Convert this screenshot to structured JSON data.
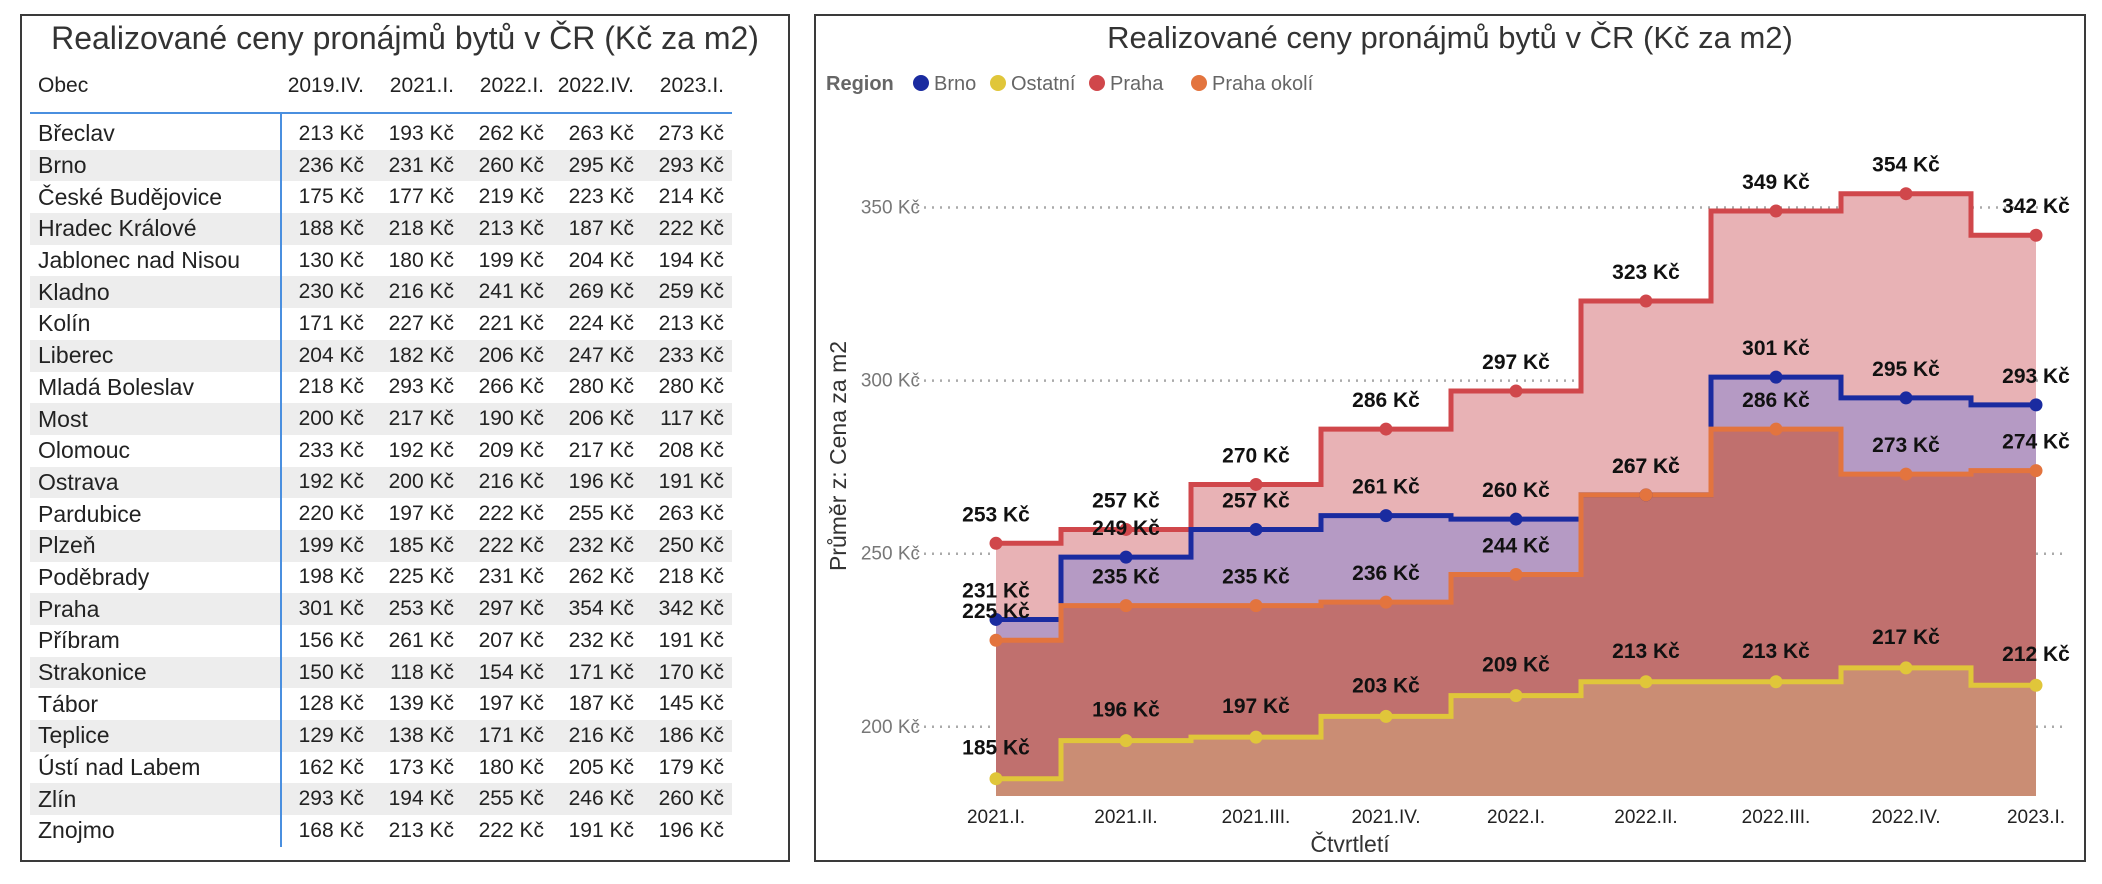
{
  "table_title": "Realizované ceny pronájmů bytů v ČR (Kč za m2)",
  "table_columns": [
    "Obec",
    "2019.IV.",
    "2021.I.",
    "2022.I.",
    "2022.IV.",
    "2023.I."
  ],
  "table_rows": [
    {
      "name": "Břeclav",
      "values": [
        "213 Kč",
        "193 Kč",
        "262 Kč",
        "263 Kč",
        "273 Kč"
      ]
    },
    {
      "name": "Brno",
      "values": [
        "236 Kč",
        "231 Kč",
        "260 Kč",
        "295 Kč",
        "293 Kč"
      ]
    },
    {
      "name": "České Budějovice",
      "values": [
        "175 Kč",
        "177 Kč",
        "219 Kč",
        "223 Kč",
        "214 Kč"
      ]
    },
    {
      "name": "Hradec Králové",
      "values": [
        "188 Kč",
        "218 Kč",
        "213 Kč",
        "187 Kč",
        "222 Kč"
      ]
    },
    {
      "name": "Jablonec nad Nisou",
      "values": [
        "130 Kč",
        "180 Kč",
        "199 Kč",
        "204 Kč",
        "194 Kč"
      ]
    },
    {
      "name": "Kladno",
      "values": [
        "230 Kč",
        "216 Kč",
        "241 Kč",
        "269 Kč",
        "259 Kč"
      ]
    },
    {
      "name": "Kolín",
      "values": [
        "171 Kč",
        "227 Kč",
        "221 Kč",
        "224 Kč",
        "213 Kč"
      ]
    },
    {
      "name": "Liberec",
      "values": [
        "204 Kč",
        "182 Kč",
        "206 Kč",
        "247 Kč",
        "233 Kč"
      ]
    },
    {
      "name": "Mladá Boleslav",
      "values": [
        "218 Kč",
        "293 Kč",
        "266 Kč",
        "280 Kč",
        "280 Kč"
      ]
    },
    {
      "name": "Most",
      "values": [
        "200 Kč",
        "217 Kč",
        "190 Kč",
        "206 Kč",
        "117 Kč"
      ]
    },
    {
      "name": "Olomouc",
      "values": [
        "233 Kč",
        "192 Kč",
        "209 Kč",
        "217 Kč",
        "208 Kč"
      ]
    },
    {
      "name": "Ostrava",
      "values": [
        "192 Kč",
        "200 Kč",
        "216 Kč",
        "196 Kč",
        "191 Kč"
      ]
    },
    {
      "name": "Pardubice",
      "values": [
        "220 Kč",
        "197 Kč",
        "222 Kč",
        "255 Kč",
        "263 Kč"
      ]
    },
    {
      "name": "Plzeň",
      "values": [
        "199 Kč",
        "185 Kč",
        "222 Kč",
        "232 Kč",
        "250 Kč"
      ]
    },
    {
      "name": "Poděbrady",
      "values": [
        "198 Kč",
        "225 Kč",
        "231 Kč",
        "262 Kč",
        "218 Kč"
      ]
    },
    {
      "name": "Praha",
      "values": [
        "301 Kč",
        "253 Kč",
        "297 Kč",
        "354 Kč",
        "342 Kč"
      ]
    },
    {
      "name": "Příbram",
      "values": [
        "156 Kč",
        "261 Kč",
        "207 Kč",
        "232 Kč",
        "191 Kč"
      ]
    },
    {
      "name": "Strakonice",
      "values": [
        "150 Kč",
        "118 Kč",
        "154 Kč",
        "171 Kč",
        "170 Kč"
      ]
    },
    {
      "name": "Tábor",
      "values": [
        "128 Kč",
        "139 Kč",
        "197 Kč",
        "187 Kč",
        "145 Kč"
      ]
    },
    {
      "name": "Teplice",
      "values": [
        "129 Kč",
        "138 Kč",
        "171 Kč",
        "216 Kč",
        "186 Kč"
      ]
    },
    {
      "name": "Ústí nad Labem",
      "values": [
        "162 Kč",
        "173 Kč",
        "180 Kč",
        "205 Kč",
        "179 Kč"
      ]
    },
    {
      "name": "Zlín",
      "values": [
        "293 Kč",
        "194 Kč",
        "255 Kč",
        "246 Kč",
        "260 Kč"
      ]
    },
    {
      "name": "Znojmo",
      "values": [
        "168 Kč",
        "213 Kč",
        "222 Kč",
        "191 Kč",
        "196 Kč"
      ]
    }
  ],
  "chart_data": {
    "type": "line",
    "step": true,
    "title": "Realizované ceny pronájmů bytů v ČR (Kč za m2)",
    "xlabel": "Čtvrtletí",
    "ylabel": "Průměr z: Cena za m2",
    "legend_title": "Region",
    "legend_position": "top-left",
    "categories": [
      "2021.I.",
      "2021.II.",
      "2021.III.",
      "2021.IV.",
      "2022.I.",
      "2022.II.",
      "2022.III.",
      "2022.IV.",
      "2023.I."
    ],
    "y_ticks": [
      200,
      250,
      300,
      350
    ],
    "y_tick_labels": [
      "200 Kč",
      "250 Kč",
      "300 Kč",
      "350 Kč"
    ],
    "ylim": [
      180,
      362
    ],
    "grid": true,
    "value_suffix": " Kč",
    "series": [
      {
        "name": "Praha",
        "color": "#d0474b",
        "fill": "#e8b2b5",
        "values": [
          253,
          257,
          270,
          286,
          297,
          323,
          349,
          354,
          342
        ]
      },
      {
        "name": "Brno",
        "color": "#1a2ba0",
        "fill": "#b59ac4",
        "values": [
          231,
          249,
          257,
          261,
          260,
          267,
          301,
          295,
          293
        ]
      },
      {
        "name": "Praha okolí",
        "color": "#e3743e",
        "fill": "#c0706e",
        "values": [
          225,
          235,
          235,
          236,
          244,
          267,
          286,
          273,
          274
        ]
      },
      {
        "name": "Ostatní",
        "color": "#e0c63a",
        "fill": "#ca8d74",
        "values": [
          185,
          196,
          197,
          203,
          209,
          213,
          213,
          217,
          212
        ]
      }
    ],
    "legend_order": [
      "Brno",
      "Ostatní",
      "Praha",
      "Praha okolí"
    ]
  }
}
